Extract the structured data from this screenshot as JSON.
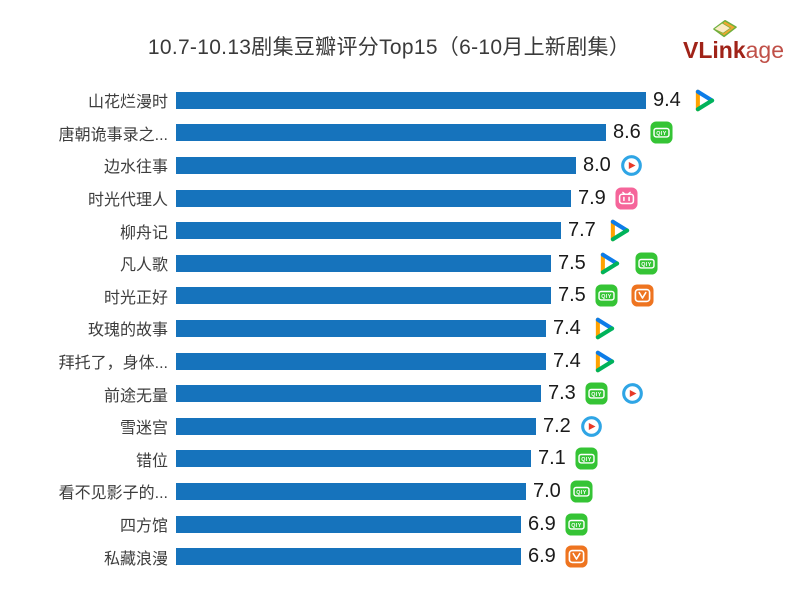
{
  "title": "10.7-10.13剧集豆瓣评分Top15（6-10月上新剧集）",
  "logo": {
    "brand_bold": "VLink",
    "brand_rest": "age"
  },
  "colors": {
    "bar": "#1673bc",
    "title_text": "#3a3a3a",
    "label_text": "#3d3d3d",
    "value_text": "#1a1a1a",
    "logo_red": "#a02318",
    "logo_light_red": "#c05048",
    "iqiyi_green": "#35c435",
    "bilibili_pink": "#f5659a",
    "youku_blue": "#2fa5e5",
    "youku_red": "#e83a28",
    "mgtv_orange": "#ee7420",
    "tencent_orange": "#ffa200",
    "tencent_blue": "#0d7ce8",
    "tencent_green": "#00b35a"
  },
  "chart_data": {
    "type": "bar",
    "orientation": "horizontal",
    "title": "10.7-10.13剧集豆瓣评分Top15（6-10月上新剧集）",
    "categories": [
      "山花烂漫时",
      "唐朝诡事录之...",
      "边水往事",
      "时光代理人",
      "柳舟记",
      "凡人歌",
      "时光正好",
      "玫瑰的故事",
      "拜托了，身体...",
      "前途无量",
      "雪迷宫",
      "错位",
      "看不见影子的...",
      "四方馆",
      "私藏浪漫"
    ],
    "values": [
      9.4,
      8.6,
      8.0,
      7.9,
      7.7,
      7.5,
      7.5,
      7.4,
      7.4,
      7.3,
      7.2,
      7.1,
      7.0,
      6.9,
      6.9
    ],
    "value_labels": [
      "9.4",
      "8.6",
      "8.0",
      "7.9",
      "7.7",
      "7.5",
      "7.5",
      "7.4",
      "7.4",
      "7.3",
      "7.2",
      "7.1",
      "7.0",
      "6.9",
      "6.9"
    ],
    "platform_icons": [
      [
        "tencent"
      ],
      [
        "iqiyi"
      ],
      [
        "youku"
      ],
      [
        "bilibili"
      ],
      [
        "tencent"
      ],
      [
        "tencent",
        "iqiyi"
      ],
      [
        "iqiyi",
        "mgtv"
      ],
      [
        "tencent"
      ],
      [
        "tencent"
      ],
      [
        "iqiyi",
        "youku"
      ],
      [
        "youku"
      ],
      [
        "iqiyi"
      ],
      [
        "iqiyi"
      ],
      [
        "iqiyi"
      ],
      [
        "mgtv"
      ]
    ],
    "xlim": [
      0,
      9.4
    ],
    "grid": false,
    "legend": false,
    "xlabel": "",
    "ylabel": ""
  },
  "icon_names": {
    "tencent": "tencent-video-icon",
    "iqiyi": "iqiyi-icon",
    "youku": "youku-icon",
    "bilibili": "bilibili-icon",
    "mgtv": "mango-tv-icon"
  }
}
